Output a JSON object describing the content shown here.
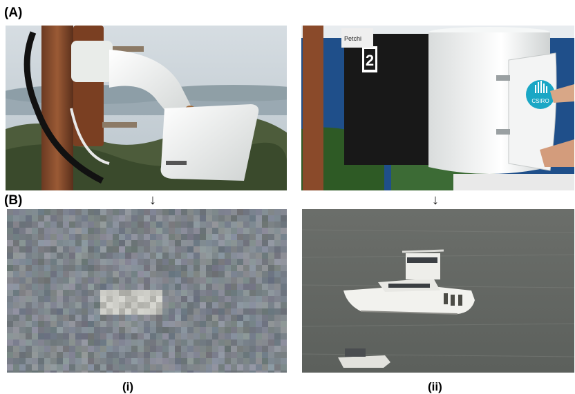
{
  "figure": {
    "label_a": "(A)",
    "label_b": "(B)",
    "caption_i": "(i)",
    "caption_ii": "(ii)",
    "arrow_glyph": "↓"
  },
  "photo_right_top": {
    "sticker_text": "Petchi",
    "number_plate": "2",
    "logo_text": "CSIRO"
  },
  "colors": {
    "sky": "#c9d3da",
    "sea_blue": "#1f4f8a",
    "csiro_teal": "#1aa7c5"
  }
}
